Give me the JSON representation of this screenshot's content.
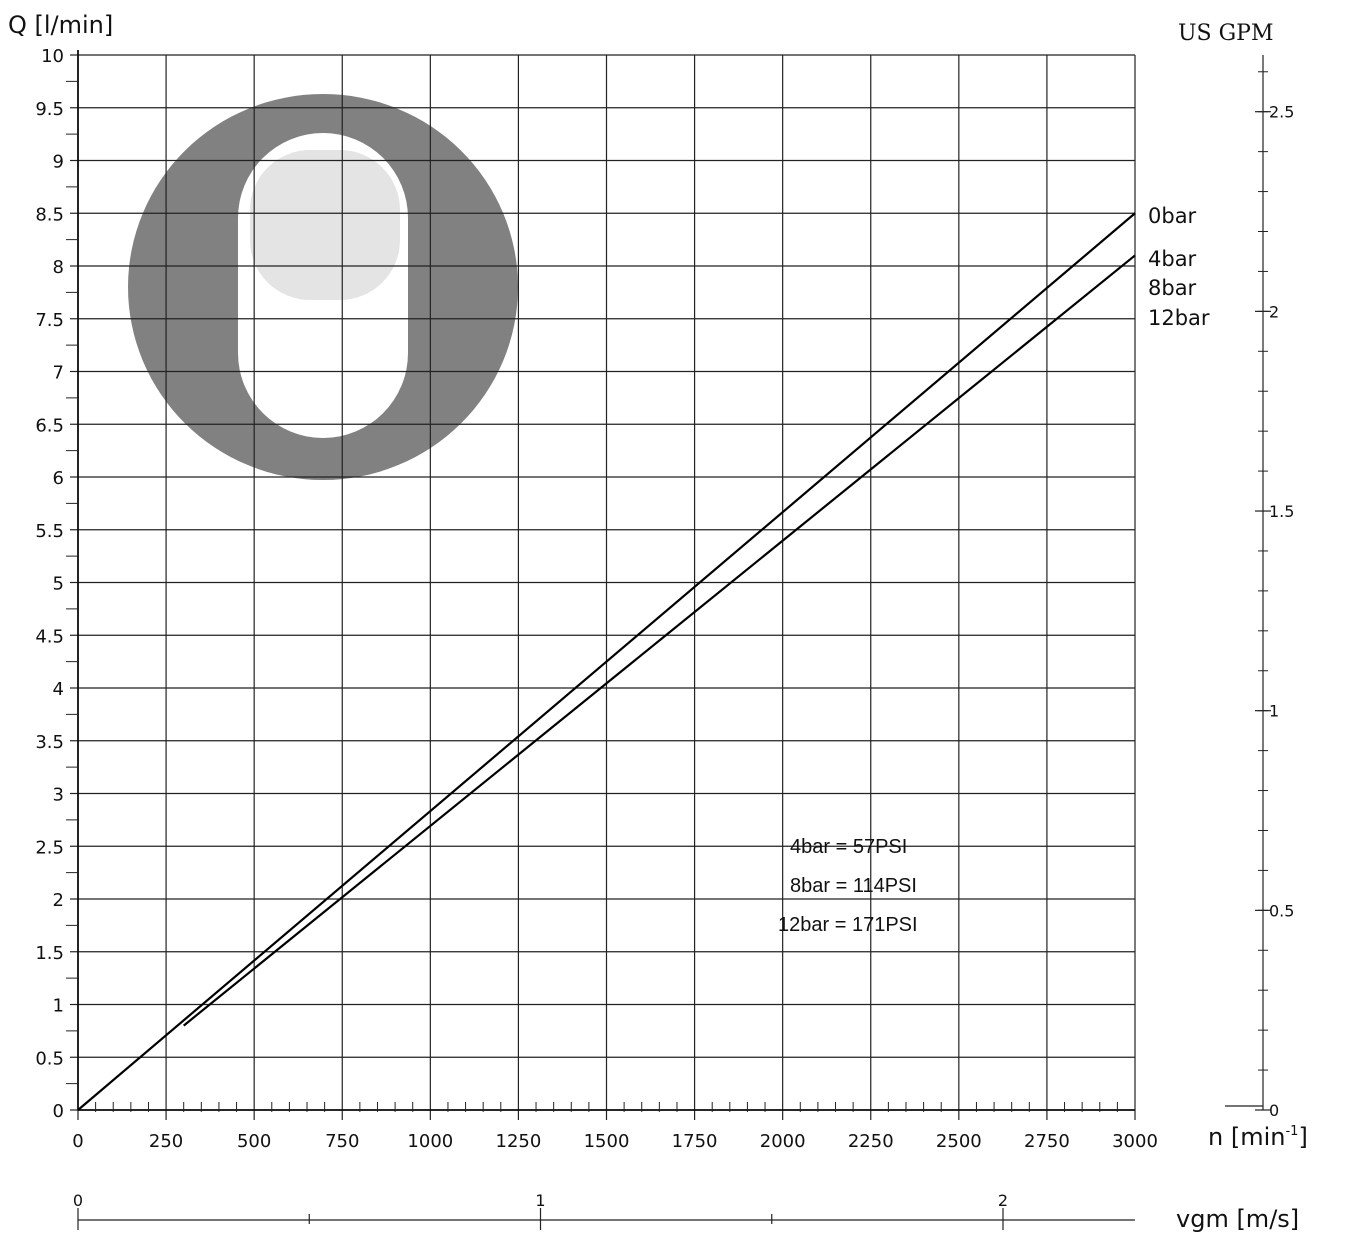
{
  "chart_data": {
    "type": "line",
    "ylabel": "Q  [l/min]",
    "xlabel": "n  [min",
    "xlabel_sup": "-1",
    "xlabel_close": "]",
    "y2label": "US  GPM",
    "vlabel": "vgm  [m/s]",
    "xlim": [
      0,
      3000
    ],
    "ylim": [
      0,
      10
    ],
    "y2lim": [
      0,
      2.642
    ],
    "x_ticks": [
      "0",
      "250",
      "500",
      "750",
      "1000",
      "1250",
      "1500",
      "1750",
      "2000",
      "2250",
      "2500",
      "2750",
      "3000"
    ],
    "y_ticks": [
      "0",
      "0.5",
      "1",
      "1.5",
      "2",
      "2.5",
      "3",
      "3.5",
      "4",
      "4.5",
      "5",
      "5.5",
      "6",
      "6.5",
      "7",
      "7.5",
      "8",
      "8.5",
      "9",
      "9.5",
      "10"
    ],
    "y2_ticks": [
      "0",
      "0.5",
      "1",
      "1.5",
      "2",
      "2.5"
    ],
    "v_ticks": [
      "0",
      "1",
      "2"
    ],
    "grid": true,
    "series": [
      {
        "name": "0bar",
        "x": [
          0,
          3000
        ],
        "y": [
          0,
          8.5
        ]
      },
      {
        "name": "",
        "x": [
          300,
          3000
        ],
        "y": [
          0.8,
          8.1
        ]
      }
    ],
    "line_labels": [
      "0bar",
      "4bar",
      "8bar",
      "12bar"
    ],
    "annotations": [
      "4bar = 57PSI",
      "8bar = 114PSI",
      "12bar = 171PSI"
    ]
  }
}
